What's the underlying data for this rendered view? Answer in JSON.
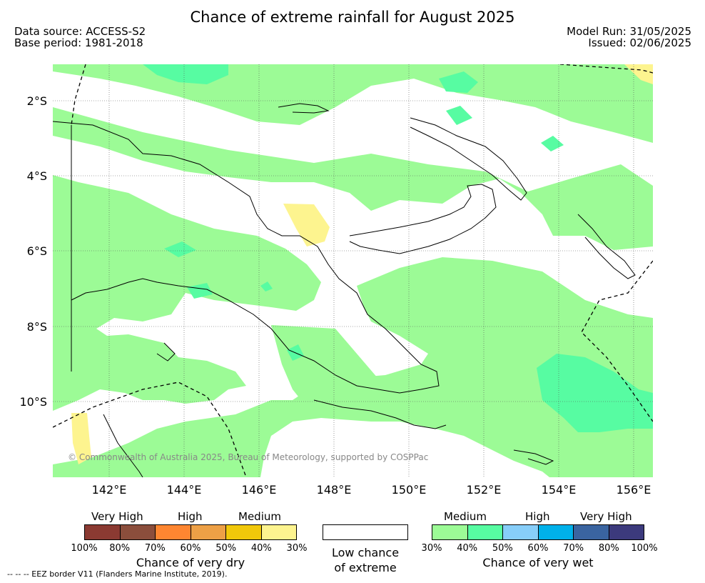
{
  "header": {
    "title": "Chance of extreme rainfall for August 2025",
    "source": "Data source: ACCESS-S2",
    "base_period": "Base period: 1981-2018",
    "model_run": "Model Run: 31/05/2025",
    "issued": "Issued: 02/06/2025"
  },
  "axes": {
    "lat_labels": [
      "2°S",
      "4°S",
      "6°S",
      "8°S",
      "10°S"
    ],
    "lon_labels": [
      "142°E",
      "144°E",
      "146°E",
      "148°E",
      "150°E",
      "152°E",
      "154°E",
      "156°E"
    ]
  },
  "map_colors": {
    "ocean": "#ffffff",
    "medium_wet": "#9cfb96",
    "high_wet": "#57fca2",
    "low_dry": "#fdf48f",
    "coast": "#000000"
  },
  "copyright": "© Commonwealth of Australia 2025, Bureau of Meteorology, supported by COSPPac",
  "legend": {
    "dry": {
      "categories": [
        "Very High",
        "High",
        "Medium"
      ],
      "ticks": [
        "100%",
        "80%",
        "70%",
        "60%",
        "50%",
        "40%",
        "30%"
      ],
      "colors": [
        "#8b3a32",
        "#8b4e3c",
        "#fe8631",
        "#eda046",
        "#f1c80a",
        "#fdf48f"
      ],
      "caption": "Chance of very dry"
    },
    "low": {
      "caption_line1": "Low chance",
      "caption_line2": "of extreme"
    },
    "wet": {
      "categories": [
        "Medium",
        "High",
        "Very High"
      ],
      "ticks": [
        "30%",
        "40%",
        "50%",
        "60%",
        "70%",
        "80%",
        "100%"
      ],
      "colors": [
        "#9cfb96",
        "#57fca2",
        "#87cef9",
        "#00b1ea",
        "#3a64a0",
        "#3c3a7d"
      ],
      "caption": "Chance of very wet"
    }
  },
  "eez_note": "--  --  -- EEZ border V11 (Flanders Marine Institute, 2019)."
}
